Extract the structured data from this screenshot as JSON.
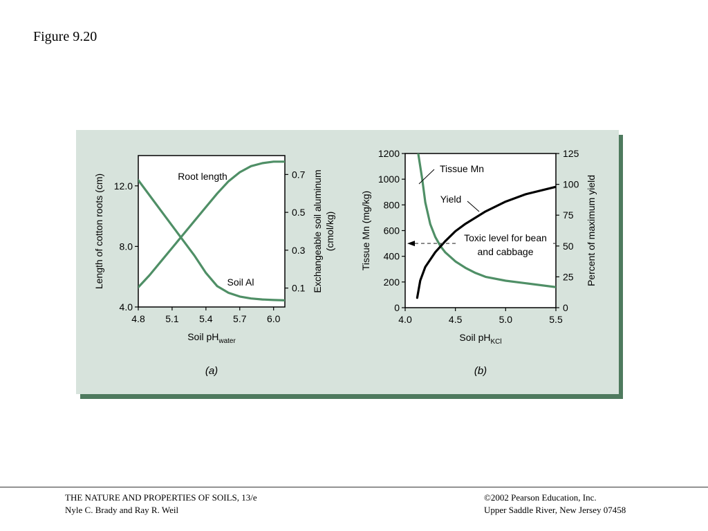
{
  "figure_title": "Figure 9.20",
  "footer": {
    "left_line1": "THE NATURE AND PROPERTIES OF SOILS, 13/e",
    "left_line2": "Nyle C. Brady and Ray R. Weil",
    "right_line1": "©2002 Pearson Education, Inc.",
    "right_line2": "Upper Saddle River, New Jersey  07458"
  },
  "colors": {
    "panel_bg": "#d7e3dc",
    "panel_shadow": "#4e7a5e",
    "green_curve": "#4f8f66",
    "black_curve": "#000000"
  },
  "chart_data": [
    {
      "panel_label": "(a)",
      "type": "line",
      "xlabel": "Soil pH",
      "xlabel_sub": "water",
      "xlim": [
        4.8,
        6.1
      ],
      "xticks": [
        "4.8",
        "5.1",
        "5.4",
        "5.7",
        "6.0"
      ],
      "xtick_values": [
        4.8,
        5.1,
        5.4,
        5.7,
        6.0
      ],
      "ylabel_left": "Length of cotton roots (cm)",
      "ylim_left": [
        4.0,
        14.0
      ],
      "yticks_left": [
        "4.0",
        "8.0",
        "12.0"
      ],
      "ytick_values_left": [
        4.0,
        8.0,
        12.0
      ],
      "ylabel_right": "Exchangeable soil aluminum",
      "ylabel_right_unit": "(cmol/kg)",
      "ylim_right": [
        0.0,
        0.8
      ],
      "yticks_right": [
        "0.1",
        "0.3",
        "0.5",
        "0.7"
      ],
      "ytick_values_right": [
        0.1,
        0.3,
        0.5,
        0.7
      ],
      "series": [
        {
          "name": "Root length",
          "axis": "left",
          "x": [
            4.8,
            4.9,
            5.0,
            5.1,
            5.2,
            5.3,
            5.4,
            5.5,
            5.6,
            5.7,
            5.8,
            5.9,
            6.0,
            6.1
          ],
          "y": [
            5.3,
            6.1,
            7.0,
            7.9,
            8.8,
            9.7,
            10.6,
            11.5,
            12.3,
            12.9,
            13.3,
            13.5,
            13.6,
            13.6
          ]
        },
        {
          "name": "Soil Al",
          "axis": "right",
          "x": [
            4.8,
            4.9,
            5.0,
            5.1,
            5.2,
            5.3,
            5.4,
            5.5,
            5.6,
            5.7,
            5.8,
            5.9,
            6.0,
            6.1
          ],
          "y": [
            0.67,
            0.59,
            0.51,
            0.43,
            0.35,
            0.27,
            0.18,
            0.11,
            0.075,
            0.055,
            0.045,
            0.04,
            0.037,
            0.035
          ]
        }
      ]
    },
    {
      "panel_label": "(b)",
      "type": "line",
      "xlabel": "Soil pH",
      "xlabel_sub": "KCl",
      "xlim": [
        4.0,
        5.5
      ],
      "xticks": [
        "4.0",
        "4.5",
        "5.0",
        "5.5"
      ],
      "xtick_values": [
        4.0,
        4.5,
        5.0,
        5.5
      ],
      "ylabel_left": "Tissue Mn (mg/kg)",
      "ylim_left": [
        0,
        1200
      ],
      "yticks_left": [
        "0",
        "200",
        "400",
        "600",
        "800",
        "1000",
        "1200"
      ],
      "ytick_values_left": [
        0,
        200,
        400,
        600,
        800,
        1000,
        1200
      ],
      "ylabel_right": "Percent of maximum yield",
      "ylim_right": [
        0,
        125
      ],
      "yticks_right": [
        "0",
        "25",
        "50",
        "75",
        "100",
        "125"
      ],
      "ytick_values_right": [
        0,
        25,
        50,
        75,
        100,
        125
      ],
      "series": [
        {
          "name": "Tissue Mn",
          "axis": "left",
          "color": "green",
          "x": [
            4.13,
            4.17,
            4.2,
            4.25,
            4.3,
            4.35,
            4.4,
            4.5,
            4.6,
            4.7,
            4.8,
            5.0,
            5.2,
            5.5
          ],
          "y": [
            1200,
            1000,
            820,
            650,
            550,
            480,
            430,
            360,
            310,
            270,
            240,
            210,
            190,
            160
          ]
        },
        {
          "name": "Yield",
          "axis": "right",
          "color": "black",
          "x": [
            4.12,
            4.15,
            4.2,
            4.3,
            4.4,
            4.5,
            4.6,
            4.8,
            5.0,
            5.2,
            5.5
          ],
          "y": [
            8,
            22,
            33,
            45,
            54,
            62,
            68,
            78,
            86,
            92,
            98
          ]
        }
      ],
      "annotations": {
        "toxic_level_value": 500,
        "toxic_label_line1": "Toxic level for bean",
        "toxic_label_line2": "and cabbage"
      }
    }
  ]
}
